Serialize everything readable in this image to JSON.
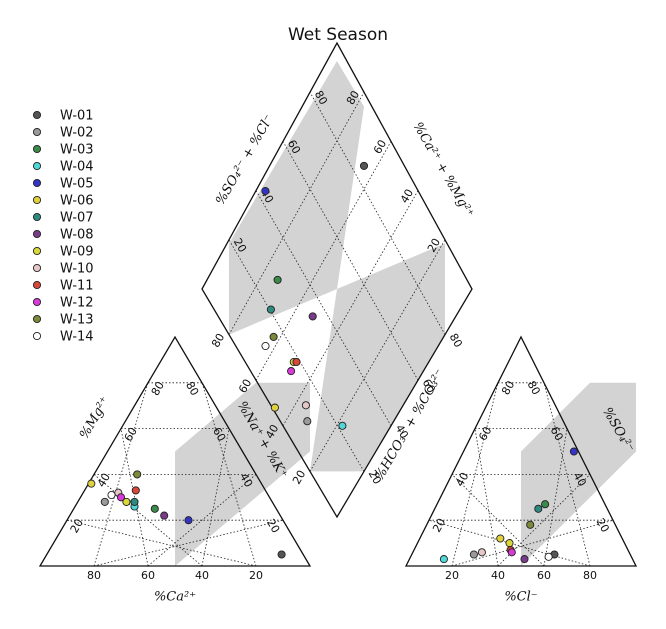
{
  "chart_data": {
    "type": "scatter",
    "subtype": "piper-diagram",
    "title": "Wet Season",
    "axes": {
      "cation_x_label": "%Ca²⁺",
      "cation_left_label": "%Mg²⁺",
      "cation_right_label": "%Na⁺ + %K⁺",
      "anion_x_label": "%Cl⁻",
      "anion_left_label": "%HCO₃⁻ + %CO₃²⁻",
      "anion_right_label": "%SO₄²⁻",
      "diamond_left_label": "%SO₄²⁻ + %Cl⁻",
      "diamond_right_label": "%Ca²⁺ + %Mg²⁺",
      "ticks": [
        "20",
        "40",
        "60",
        "80"
      ],
      "ticks_reversed": [
        "80",
        "60",
        "40",
        "20"
      ],
      "grid": true,
      "grid_style": "dotted",
      "shaded_regions": "light gray"
    },
    "legend": {
      "placement": "left",
      "entries": [
        {
          "name": "W-01",
          "color": "#555555"
        },
        {
          "name": "W-02",
          "color": "#9a9a9a"
        },
        {
          "name": "W-03",
          "color": "#3a8a4a"
        },
        {
          "name": "W-04",
          "color": "#4fd6d6"
        },
        {
          "name": "W-05",
          "color": "#3434c4"
        },
        {
          "name": "W-06",
          "color": "#e0d040"
        },
        {
          "name": "W-07",
          "color": "#2e8a80"
        },
        {
          "name": "W-08",
          "color": "#7a3a8a"
        },
        {
          "name": "W-09",
          "color": "#d8d83a"
        },
        {
          "name": "W-10",
          "color": "#e6c6c6"
        },
        {
          "name": "W-11",
          "color": "#d8483a"
        },
        {
          "name": "W-12",
          "color": "#d83ad8"
        },
        {
          "name": "W-13",
          "color": "#7a8a3a"
        },
        {
          "name": "W-14",
          "color": "#ffffff"
        }
      ]
    },
    "samples": [
      {
        "name": "W-01",
        "ca": 8,
        "mg": 5,
        "cl": 62,
        "so4": 5
      },
      {
        "name": "W-02",
        "ca": 62,
        "mg": 28,
        "cl": 27,
        "so4": 5
      },
      {
        "name": "W-03",
        "ca": 45,
        "mg": 25,
        "cl": 47,
        "so4": 27
      },
      {
        "name": "W-04",
        "ca": 52,
        "mg": 26,
        "cl": 15,
        "so4": 3
      },
      {
        "name": "W-05",
        "ca": 35,
        "mg": 20,
        "cl": 48,
        "so4": 50
      },
      {
        "name": "W-06",
        "ca": 63,
        "mg": 36,
        "cl": 35,
        "so4": 12
      },
      {
        "name": "W-07",
        "ca": 51,
        "mg": 28,
        "cl": 45,
        "so4": 25
      },
      {
        "name": "W-08",
        "ca": 43,
        "mg": 22,
        "cl": 50,
        "so4": 3
      },
      {
        "name": "W-09",
        "ca": 54,
        "mg": 28,
        "cl": 40,
        "so4": 10
      },
      {
        "name": "W-10",
        "ca": 55,
        "mg": 32,
        "cl": 30,
        "so4": 6
      },
      {
        "name": "W-11",
        "ca": 48,
        "mg": 33,
        "cl": 42,
        "so4": 7
      },
      {
        "name": "W-12",
        "ca": 55,
        "mg": 30,
        "cl": 43,
        "so4": 6
      },
      {
        "name": "W-13",
        "ca": 44,
        "mg": 40,
        "cl": 45,
        "so4": 18
      },
      {
        "name": "W-14",
        "ca": 58,
        "mg": 31,
        "cl": 60,
        "so4": 4
      }
    ]
  }
}
